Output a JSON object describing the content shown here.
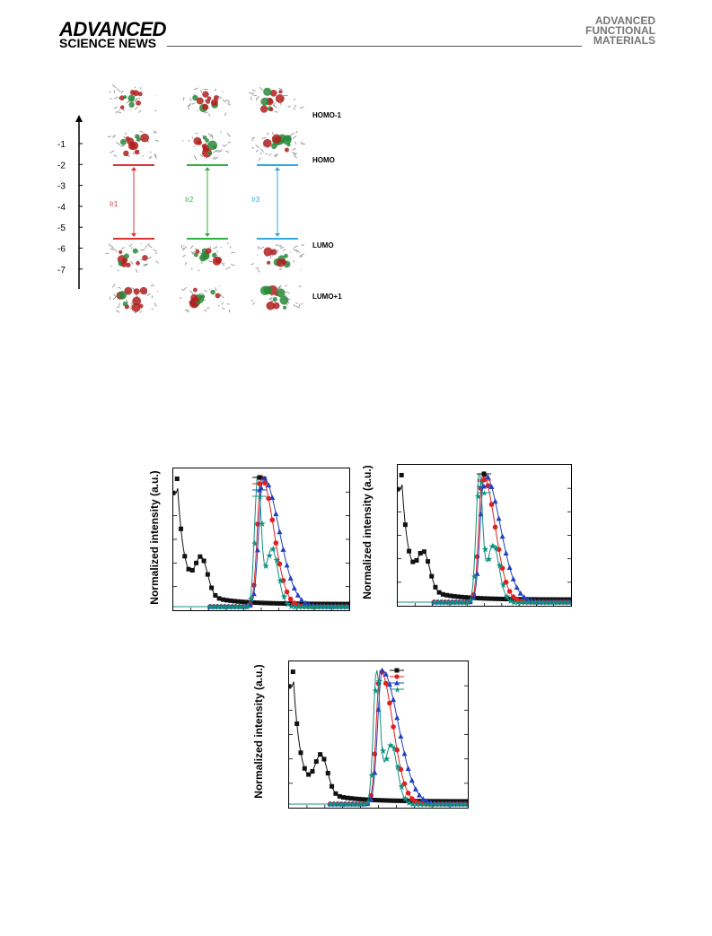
{
  "header": {
    "left_logo_line1": "ADVANCED",
    "left_logo_line2": "SCIENCE NEWS",
    "right_logo_lines": [
      "ADVANCED",
      "FUNCTIONAL",
      "MATERIALS"
    ]
  },
  "energy_diagram": {
    "y_ticks": [
      "-1",
      "-2",
      "-3",
      "-4",
      "-5",
      "-6",
      "-7"
    ],
    "orbital_labels": [
      "HOMO-1",
      "HOMO",
      "LUMO",
      "LUMO+1"
    ],
    "complexes": [
      {
        "name": "Ir1",
        "color": "#e03030"
      },
      {
        "name": "Ir2",
        "color": "#30b040"
      },
      {
        "name": "Ir3",
        "color": "#30a8e0"
      }
    ]
  },
  "spectra": {
    "ylabel": "Normalized intensity (a.u.)",
    "colors": {
      "black": "#111111",
      "red": "#e02020",
      "blue": "#2040c0",
      "teal": "#10907f"
    }
  }
}
